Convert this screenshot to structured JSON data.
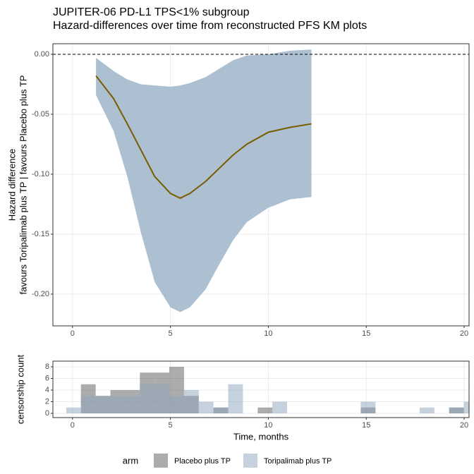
{
  "chart_data": [
    {
      "type": "line",
      "title": "JUPITER-06 PD-L1 TPS<1% subgroup",
      "subtitle": "Hazard-differences over time from reconstructed PFS KM plots",
      "ylabel": [
        "Hazard difference",
        "favours Toripalimab plus TP | favours Placebo plus TP"
      ],
      "x": [
        1.2,
        2.1,
        2.8,
        3.5,
        4.2,
        5,
        5.5,
        6,
        6.8,
        7.5,
        8.2,
        8.9,
        10,
        11.1,
        12.2
      ],
      "series": [
        {
          "color": "#7a5c00",
          "ribbon_color": "#adc0d1",
          "values": [
            -0.018,
            -0.037,
            -0.058,
            -0.08,
            -0.102,
            -0.116,
            -0.12,
            -0.116,
            -0.106,
            -0.095,
            -0.084,
            -0.075,
            -0.065,
            -0.061,
            -0.058
          ],
          "upper": [
            -0.003,
            -0.014,
            -0.021,
            -0.025,
            -0.026,
            -0.027,
            -0.026,
            -0.024,
            -0.019,
            -0.012,
            -0.005,
            -0.001,
            0,
            0.003,
            0.004
          ],
          "lower": [
            -0.034,
            -0.064,
            -0.102,
            -0.149,
            -0.19,
            -0.211,
            -0.215,
            -0.211,
            -0.196,
            -0.175,
            -0.155,
            -0.14,
            -0.128,
            -0.121,
            -0.119
          ]
        }
      ],
      "reference_line": 0,
      "xlim": [
        -1,
        20.25
      ],
      "xticks": [
        0,
        5,
        10,
        15,
        20
      ],
      "ylim": [
        -0.2265,
        0.0088
      ],
      "yticks": [
        {
          "value": 0,
          "label": "0.00"
        },
        {
          "value": -0.05,
          "label": "-0.05"
        },
        {
          "value": -0.1,
          "label": "-0.10"
        },
        {
          "value": -0.15,
          "label": "-0.15"
        },
        {
          "value": -0.2,
          "label": "-0.20"
        }
      ],
      "grid": true
    },
    {
      "type": "histogram",
      "xlabel": "Time, months",
      "ylabel": "censorship count",
      "bins": [
        -0.32,
        0.432,
        1.184,
        1.936,
        2.688,
        3.44,
        4.192,
        4.944,
        5.696,
        6.448,
        7.2,
        7.952,
        8.704,
        9.456,
        10.208,
        10.96,
        11.712,
        12.464,
        13.216,
        13.968,
        14.72,
        15.472,
        16.224,
        16.976,
        17.728,
        18.48,
        19.232,
        19.984,
        20.736
      ],
      "series": [
        {
          "name": "Placebo plus TP",
          "color": "#595959",
          "values": [
            0,
            5,
            3,
            4,
            4,
            7,
            7,
            8,
            3,
            0,
            1,
            0,
            0,
            1,
            0,
            0,
            0,
            0,
            0,
            0,
            1,
            0,
            0,
            0,
            0,
            0,
            1,
            0
          ]
        },
        {
          "name": "Toripalimab plus TP",
          "color": "#8ba5bd",
          "values": [
            1,
            3,
            3,
            3,
            3,
            5,
            5,
            3,
            4,
            2,
            1,
            5,
            0,
            0,
            2,
            0,
            0,
            0,
            0,
            0,
            2,
            0,
            0,
            0,
            1,
            0,
            1,
            2
          ]
        }
      ],
      "legend_title": "arm",
      "legend": "bottom",
      "xlim": [
        -1,
        20.25
      ],
      "xticks": [
        0,
        5,
        10,
        15,
        20
      ],
      "ylim": [
        -0.73,
        8.97
      ],
      "yticks": [
        0,
        2,
        4,
        6,
        8
      ],
      "grid": true
    }
  ]
}
